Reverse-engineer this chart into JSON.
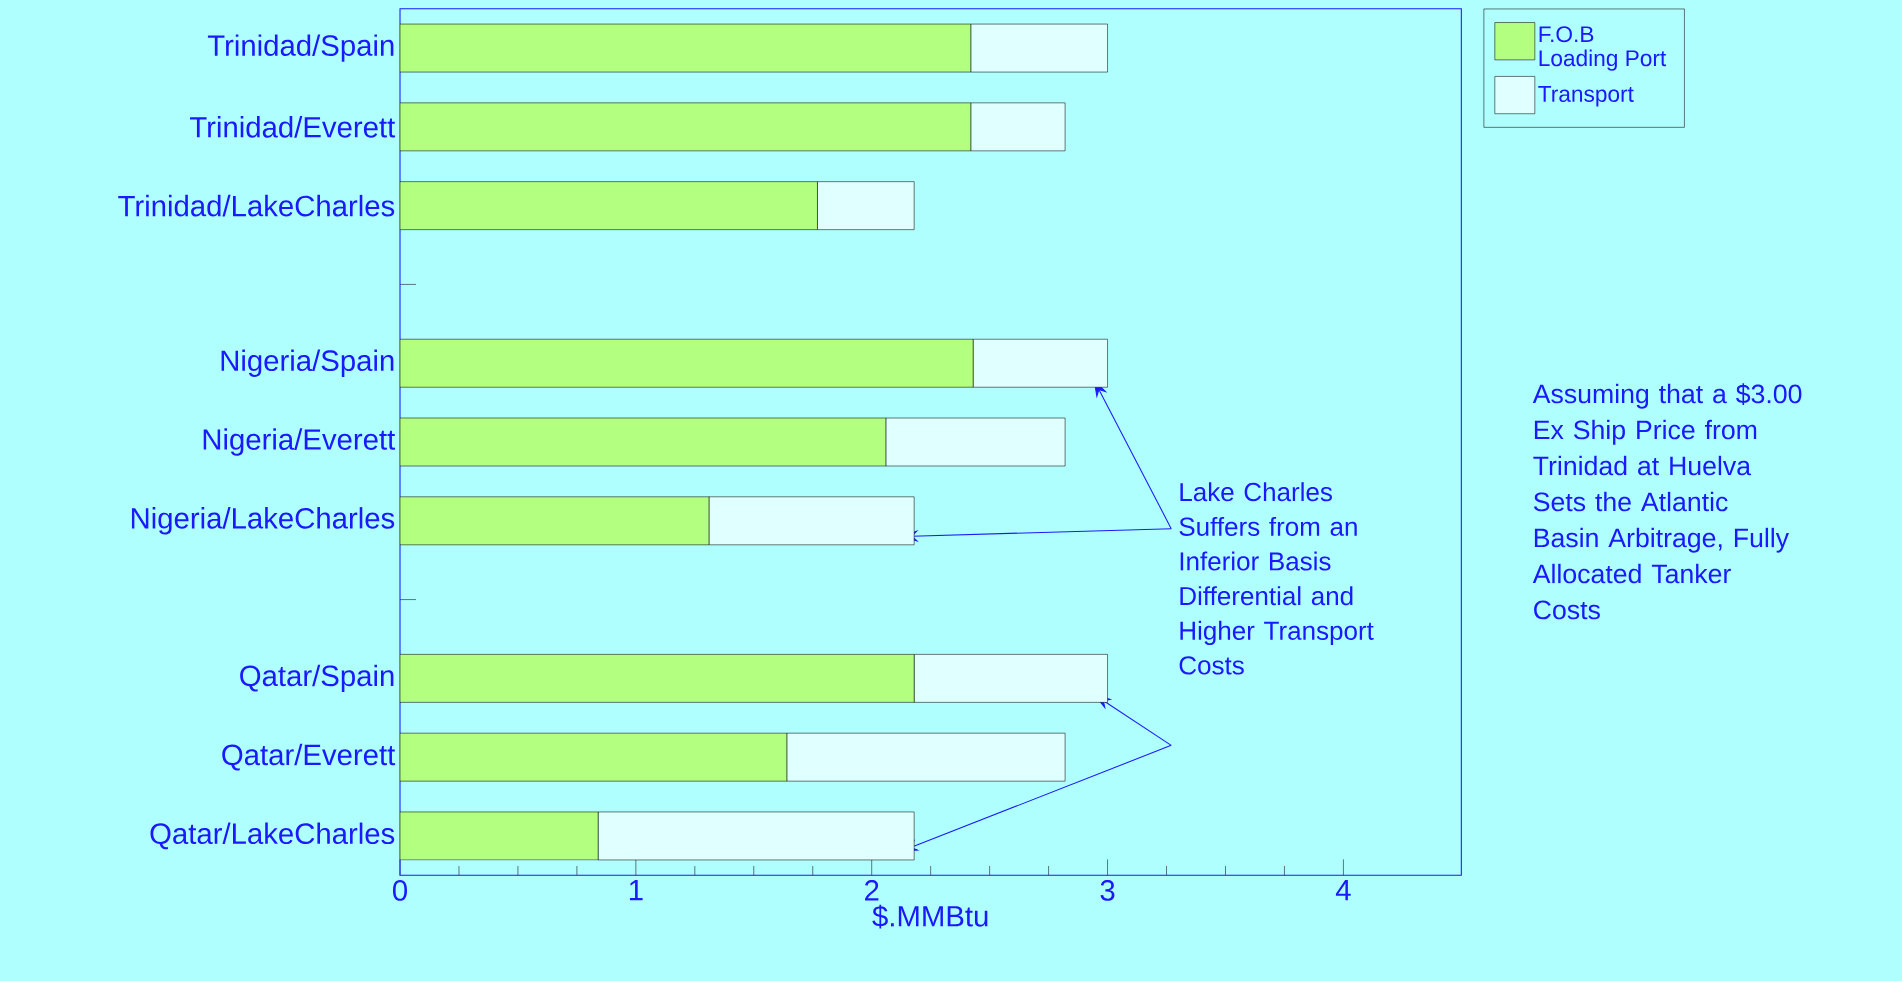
{
  "chart_data": {
    "type": "bar",
    "orientation": "horizontal",
    "stacked": true,
    "categories": [
      "Trinidad/Spain",
      "Trinidad/Everett",
      "Trinidad/LakeCharles",
      null,
      "Nigeria/Spain",
      "Nigeria/Everett",
      "Nigeria/LakeCharles",
      null,
      "Qatar/Spain",
      "Qatar/Everett",
      "Qatar/LakeCharles"
    ],
    "series": [
      {
        "name": "F.O.B Loading Port",
        "color": "#b3ff80",
        "values": [
          2.42,
          2.42,
          1.77,
          null,
          2.43,
          2.06,
          1.31,
          null,
          2.18,
          1.64,
          0.84
        ]
      },
      {
        "name": "Transport",
        "color": "#e0ffff",
        "values": [
          0.58,
          0.4,
          0.41,
          null,
          0.57,
          0.76,
          0.87,
          null,
          0.82,
          1.18,
          1.34
        ]
      }
    ],
    "xlabel": "$.MMBtu",
    "xlim": [
      0,
      4.5
    ],
    "xticks": [
      0,
      1,
      2,
      3,
      4
    ],
    "legend": "top right",
    "grid": false,
    "annotations": [
      "Lake Charles Suffers from an Inferior Basis Differential and Higher Transport Costs",
      "Assuming that a $3.00 Ex Ship Price from Trinidad at Huelva Sets the Atlantic Basin Arbitrage, Fully Allocated Tanker Costs"
    ]
  }
}
